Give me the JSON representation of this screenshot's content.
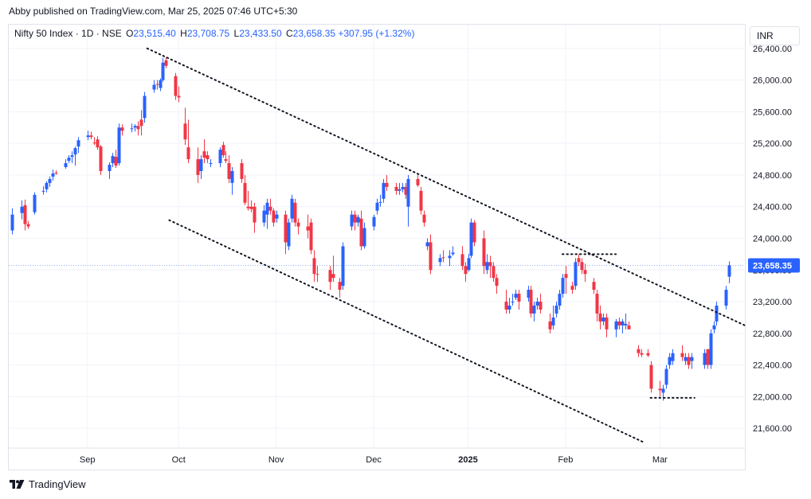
{
  "header": {
    "published": "Abby published on TradingView.com, Mar 25, 2025 07:46 UTC+5:30"
  },
  "legend": {
    "symbol": "Nifty 50 Index · 1D · NSE",
    "o_label": "O",
    "o_value": "23,515.40",
    "h_label": "H",
    "h_value": "23,708.75",
    "l_label": "L",
    "l_value": "23,433.50",
    "c_label": "C",
    "c_value": "23,658.35",
    "change": "+307.95 (+1.32%)"
  },
  "currency": "INR",
  "footer": {
    "brand": "TradingView"
  },
  "colors": {
    "up": "#2962ff",
    "down": "#f23645",
    "grid": "#f0f3fa",
    "last_price": "#2962ff",
    "trendline": "#131722"
  },
  "icons": {
    "logo": "tradingview-logo-icon"
  },
  "chart_data": {
    "type": "candlestick",
    "title": "Nifty 50 Index · 1D · NSE",
    "y_axis_side": "right",
    "ylim": [
      21350,
      26700
    ],
    "y_ticks": [
      21600,
      22000,
      22400,
      22800,
      23200,
      23600,
      24000,
      24400,
      24800,
      25200,
      25600,
      26000,
      26400
    ],
    "y_tick_labels": [
      "21,600.00",
      "22,000.00",
      "22,400.00",
      "22,800.00",
      "23,200.00",
      "23,600.00",
      "24,000.00",
      "24,400.00",
      "24,800.00",
      "25,200.00",
      "25,600.00",
      "26,000.00",
      "26,400.00"
    ],
    "x_labels": [
      {
        "label": "Sep",
        "date": "2024-09-02"
      },
      {
        "label": "Oct",
        "date": "2024-10-01"
      },
      {
        "label": "Nov",
        "date": "2024-11-01"
      },
      {
        "label": "Dec",
        "date": "2024-12-02"
      },
      {
        "label": "2025",
        "date": "2025-01-01"
      },
      {
        "label": "Feb",
        "date": "2025-02-01"
      },
      {
        "label": "Mar",
        "date": "2025-03-03"
      }
    ],
    "x_range": [
      "2024-08-08",
      "2025-03-30"
    ],
    "last_price": {
      "value": 23658.35,
      "label": "23,658.35"
    },
    "grid": true,
    "candles": [
      [
        "2024-08-09",
        24100,
        24380,
        24050,
        24300
      ],
      [
        "2024-08-12",
        24320,
        24480,
        24240,
        24400
      ],
      [
        "2024-08-13",
        24420,
        24490,
        24100,
        24180
      ],
      [
        "2024-08-14",
        24180,
        24220,
        24120,
        24150
      ],
      [
        "2024-08-16",
        24330,
        24580,
        24300,
        24550
      ],
      [
        "2024-08-19",
        24600,
        24660,
        24550,
        24600
      ],
      [
        "2024-08-20",
        24620,
        24720,
        24580,
        24700
      ],
      [
        "2024-08-21",
        24700,
        24780,
        24650,
        24750
      ],
      [
        "2024-08-22",
        24780,
        24870,
        24730,
        24820
      ],
      [
        "2024-08-23",
        24830,
        24860,
        24800,
        24820
      ],
      [
        "2024-08-26",
        24900,
        25000,
        24880,
        24950
      ],
      [
        "2024-08-27",
        24980,
        25050,
        24950,
        25020
      ],
      [
        "2024-08-28",
        25030,
        25100,
        24950,
        25050
      ],
      [
        "2024-08-29",
        25060,
        25160,
        24920,
        25140
      ],
      [
        "2024-08-30",
        25160,
        25280,
        25080,
        25240
      ],
      [
        "2024-09-02",
        25280,
        25360,
        25240,
        25300
      ],
      [
        "2024-09-03",
        25300,
        25350,
        25250,
        25280
      ],
      [
        "2024-09-04",
        25210,
        25280,
        25180,
        25200
      ],
      [
        "2024-09-05",
        25250,
        25290,
        25120,
        25150
      ],
      [
        "2024-09-06",
        25160,
        25180,
        24800,
        24850
      ],
      [
        "2024-09-09",
        24850,
        24960,
        24750,
        24930
      ],
      [
        "2024-09-10",
        24950,
        25080,
        24900,
        25040
      ],
      [
        "2024-09-11",
        25030,
        25120,
        24890,
        24920
      ],
      [
        "2024-09-12",
        24950,
        25450,
        24920,
        25400
      ],
      [
        "2024-09-13",
        25400,
        25440,
        25300,
        25360
      ],
      [
        "2024-09-16",
        25380,
        25450,
        25340,
        25390
      ],
      [
        "2024-09-17",
        25400,
        25440,
        25350,
        25420
      ],
      [
        "2024-09-18",
        25420,
        25480,
        25300,
        25380
      ],
      [
        "2024-09-19",
        25500,
        25620,
        25300,
        25420
      ],
      [
        "2024-09-20",
        25520,
        25850,
        25460,
        25800
      ],
      [
        "2024-09-23",
        25880,
        26000,
        25840,
        25940
      ],
      [
        "2024-09-24",
        25950,
        26000,
        25880,
        25940
      ],
      [
        "2024-09-25",
        25900,
        26020,
        25860,
        26000
      ],
      [
        "2024-09-26",
        26000,
        26280,
        25980,
        26220
      ],
      [
        "2024-09-27",
        26250,
        26290,
        26150,
        26180
      ],
      [
        "2024-09-30",
        26050,
        26090,
        25750,
        25800
      ],
      [
        "2024-10-01",
        25800,
        25920,
        25720,
        25780
      ],
      [
        "2024-10-03",
        25450,
        25650,
        25180,
        25250
      ],
      [
        "2024-10-04",
        25150,
        25500,
        24950,
        25000
      ],
      [
        "2024-10-07",
        25000,
        25150,
        24700,
        24800
      ],
      [
        "2024-10-08",
        24850,
        25050,
        24750,
        25000
      ],
      [
        "2024-10-09",
        25100,
        25250,
        24950,
        25020
      ],
      [
        "2024-10-10",
        25050,
        25100,
        24950,
        25000
      ],
      [
        "2024-10-11",
        24950,
        25000,
        24900,
        24950
      ],
      [
        "2024-10-14",
        24950,
        25150,
        24900,
        25120
      ],
      [
        "2024-10-15",
        25180,
        25220,
        25020,
        25050
      ],
      [
        "2024-10-16",
        25000,
        25100,
        24950,
        24980
      ],
      [
        "2024-10-17",
        24950,
        25050,
        24700,
        24750
      ],
      [
        "2024-10-18",
        24700,
        24900,
        24550,
        24850
      ],
      [
        "2024-10-21",
        24950,
        25000,
        24700,
        24750
      ],
      [
        "2024-10-22",
        24700,
        24800,
        24420,
        24450
      ],
      [
        "2024-10-23",
        24400,
        24600,
        24350,
        24380
      ],
      [
        "2024-10-24",
        24400,
        24480,
        24330,
        24370
      ],
      [
        "2024-10-25",
        24400,
        24450,
        24070,
        24200
      ],
      [
        "2024-10-28",
        24200,
        24420,
        24150,
        24350
      ],
      [
        "2024-10-29",
        24300,
        24500,
        24120,
        24450
      ],
      [
        "2024-10-30",
        24400,
        24500,
        24300,
        24350
      ],
      [
        "2024-10-31",
        24350,
        24380,
        24150,
        24200
      ],
      [
        "2024-11-01",
        24250,
        24350,
        24200,
        24300
      ],
      [
        "2024-11-04",
        24300,
        24350,
        23800,
        23950
      ],
      [
        "2024-11-05",
        23900,
        24250,
        23850,
        24200
      ],
      [
        "2024-11-06",
        24250,
        24550,
        24200,
        24500
      ],
      [
        "2024-11-07",
        24450,
        24500,
        24150,
        24200
      ],
      [
        "2024-11-08",
        24200,
        24250,
        24050,
        24150
      ],
      [
        "2024-11-11",
        24150,
        24300,
        24000,
        24100
      ],
      [
        "2024-11-12",
        24200,
        24250,
        23800,
        23850
      ],
      [
        "2024-11-13",
        23750,
        23850,
        23450,
        23550
      ],
      [
        "2024-11-14",
        23550,
        23650,
        23450,
        23540
      ],
      [
        "2024-11-18",
        23600,
        23650,
        23350,
        23450
      ],
      [
        "2024-11-19",
        23550,
        23780,
        23450,
        23500
      ],
      [
        "2024-11-21",
        23450,
        23500,
        23250,
        23350
      ],
      [
        "2024-11-22",
        23400,
        23950,
        23350,
        23900
      ],
      [
        "2024-11-25",
        24150,
        24350,
        24100,
        24300
      ],
      [
        "2024-11-26",
        24300,
        24350,
        24100,
        24200
      ],
      [
        "2024-11-27",
        24200,
        24300,
        24150,
        24270
      ],
      [
        "2024-11-28",
        24250,
        24350,
        23850,
        23900
      ],
      [
        "2024-11-29",
        23900,
        24200,
        23870,
        24130
      ],
      [
        "2024-12-02",
        24150,
        24300,
        24100,
        24270
      ],
      [
        "2024-12-03",
        24350,
        24500,
        24300,
        24450
      ],
      [
        "2024-12-04",
        24450,
        24550,
        24400,
        24460
      ],
      [
        "2024-12-05",
        24500,
        24750,
        24450,
        24700
      ],
      [
        "2024-12-06",
        24700,
        24800,
        24600,
        24650
      ],
      [
        "2024-12-09",
        24650,
        24700,
        24550,
        24600
      ],
      [
        "2024-12-10",
        24600,
        24700,
        24550,
        24620
      ],
      [
        "2024-12-11",
        24620,
        24700,
        24580,
        24650
      ],
      [
        "2024-12-12",
        24650,
        24700,
        24500,
        24550
      ],
      [
        "2024-12-13",
        24400,
        24800,
        24150,
        24750
      ],
      [
        "2024-12-16",
        24750,
        24800,
        24650,
        24670
      ],
      [
        "2024-12-17",
        24600,
        24650,
        24300,
        24350
      ],
      [
        "2024-12-18",
        24300,
        24350,
        24150,
        24200
      ],
      [
        "2024-12-19",
        23900,
        24000,
        23850,
        23950
      ],
      [
        "2024-12-20",
        23950,
        24050,
        23550,
        23600
      ],
      [
        "2024-12-23",
        23700,
        23800,
        23650,
        23750
      ],
      [
        "2024-12-24",
        23760,
        23850,
        23700,
        23750
      ],
      [
        "2024-12-26",
        23750,
        23850,
        23650,
        23780
      ],
      [
        "2024-12-27",
        23800,
        23900,
        23780,
        23820
      ],
      [
        "2024-12-30",
        23800,
        23900,
        23600,
        23650
      ],
      [
        "2024-12-31",
        23650,
        23700,
        23450,
        23550
      ],
      [
        "2025-01-01",
        23600,
        23800,
        23580,
        23750
      ],
      [
        "2025-01-02",
        23780,
        24250,
        23750,
        24200
      ],
      [
        "2025-01-03",
        24200,
        24230,
        23900,
        23950
      ],
      [
        "2025-01-06",
        24000,
        24100,
        23550,
        23650
      ],
      [
        "2025-01-07",
        23600,
        23800,
        23550,
        23700
      ],
      [
        "2025-01-08",
        23700,
        23780,
        23500,
        23650
      ],
      [
        "2025-01-09",
        23650,
        23700,
        23450,
        23500
      ],
      [
        "2025-01-10",
        23500,
        23550,
        23300,
        23400
      ],
      [
        "2025-01-13",
        23200,
        23350,
        23050,
        23100
      ],
      [
        "2025-01-14",
        23100,
        23250,
        23050,
        23150
      ],
      [
        "2025-01-15",
        23200,
        23300,
        23150,
        23200
      ],
      [
        "2025-01-16",
        23250,
        23350,
        23220,
        23300
      ],
      [
        "2025-01-17",
        23300,
        23350,
        23100,
        23200
      ],
      [
        "2025-01-20",
        23250,
        23400,
        23200,
        23350
      ],
      [
        "2025-01-21",
        23350,
        23400,
        23000,
        23050
      ],
      [
        "2025-01-22",
        23050,
        23200,
        22950,
        23150
      ],
      [
        "2025-01-23",
        23150,
        23250,
        23100,
        23200
      ],
      [
        "2025-01-24",
        23200,
        23300,
        23050,
        23100
      ],
      [
        "2025-01-27",
        22950,
        23050,
        22800,
        22850
      ],
      [
        "2025-01-28",
        22900,
        23150,
        22850,
        23000
      ],
      [
        "2025-01-29",
        23050,
        23200,
        23000,
        23150
      ],
      [
        "2025-01-30",
        23150,
        23350,
        23100,
        23300
      ],
      [
        "2025-01-31",
        23300,
        23550,
        23250,
        23500
      ],
      [
        "2025-02-01",
        23550,
        23650,
        23300,
        23500
      ],
      [
        "2025-02-03",
        23400,
        23450,
        23300,
        23350
      ],
      [
        "2025-02-04",
        23400,
        23750,
        23350,
        23700
      ],
      [
        "2025-02-05",
        23750,
        23800,
        23650,
        23700
      ],
      [
        "2025-02-06",
        23700,
        23750,
        23550,
        23600
      ],
      [
        "2025-02-07",
        23600,
        23680,
        23450,
        23550
      ],
      [
        "2025-02-10",
        23450,
        23500,
        23300,
        23350
      ],
      [
        "2025-02-11",
        23300,
        23350,
        22950,
        23050
      ],
      [
        "2025-02-12",
        23050,
        23150,
        22850,
        22950
      ],
      [
        "2025-02-13",
        22950,
        23050,
        22900,
        23000
      ],
      [
        "2025-02-14",
        23000,
        23050,
        22750,
        22850
      ],
      [
        "2025-02-17",
        22850,
        22980,
        22750,
        22950
      ],
      [
        "2025-02-18",
        22950,
        23000,
        22850,
        22900
      ],
      [
        "2025-02-19",
        22900,
        22980,
        22800,
        22950
      ],
      [
        "2025-02-20",
        22900,
        23050,
        22850,
        22920
      ],
      [
        "2025-02-21",
        22900,
        22950,
        22850,
        22850
      ],
      [
        "2025-02-24",
        22600,
        22650,
        22500,
        22550
      ],
      [
        "2025-02-25",
        22550,
        22600,
        22500,
        22530
      ],
      [
        "2025-02-27",
        22550,
        22600,
        22500,
        22520
      ],
      [
        "2025-02-28",
        22400,
        22450,
        22050,
        22100
      ],
      [
        "2025-03-03",
        22100,
        22200,
        22000,
        22080
      ],
      [
        "2025-03-04",
        22050,
        22150,
        21950,
        22100
      ],
      [
        "2025-03-05",
        22150,
        22400,
        22100,
        22350
      ],
      [
        "2025-03-06",
        22400,
        22550,
        22350,
        22500
      ],
      [
        "2025-03-07",
        22450,
        22600,
        22400,
        22550
      ],
      [
        "2025-03-10",
        22550,
        22650,
        22450,
        22500
      ],
      [
        "2025-03-11",
        22450,
        22550,
        22400,
        22500
      ],
      [
        "2025-03-12",
        22500,
        22550,
        22350,
        22400
      ],
      [
        "2025-03-13",
        22450,
        22550,
        22350,
        22500
      ],
      [
        "2025-03-17",
        22400,
        22600,
        22350,
        22550
      ],
      [
        "2025-03-18",
        22600,
        22600,
        22350,
        22400
      ],
      [
        "2025-03-19",
        22400,
        22850,
        22350,
        22800
      ],
      [
        "2025-03-20",
        22850,
        22950,
        22800,
        22900
      ],
      [
        "2025-03-21",
        22950,
        23200,
        22900,
        23150
      ],
      [
        "2025-03-24",
        23150,
        23400,
        23100,
        23350
      ],
      [
        "2025-03-25",
        23515.4,
        23708.75,
        23433.5,
        23658.35
      ]
    ],
    "annotations": [
      {
        "type": "trendline",
        "style": "dotted",
        "from": [
          "2024-09-21",
          26400
        ],
        "to": [
          "2025-03-30",
          22900
        ]
      },
      {
        "type": "trendline",
        "style": "dotted",
        "from": [
          "2024-09-28",
          24230
        ],
        "to": [
          "2025-02-26",
          21420
        ]
      },
      {
        "type": "hline",
        "style": "dotted",
        "from": [
          "2025-01-31",
          23800
        ],
        "to": [
          "2025-02-17",
          23800
        ]
      },
      {
        "type": "hline",
        "style": "dotted",
        "from": [
          "2025-02-28",
          21985
        ],
        "to": [
          "2025-03-14",
          21985
        ]
      }
    ]
  }
}
